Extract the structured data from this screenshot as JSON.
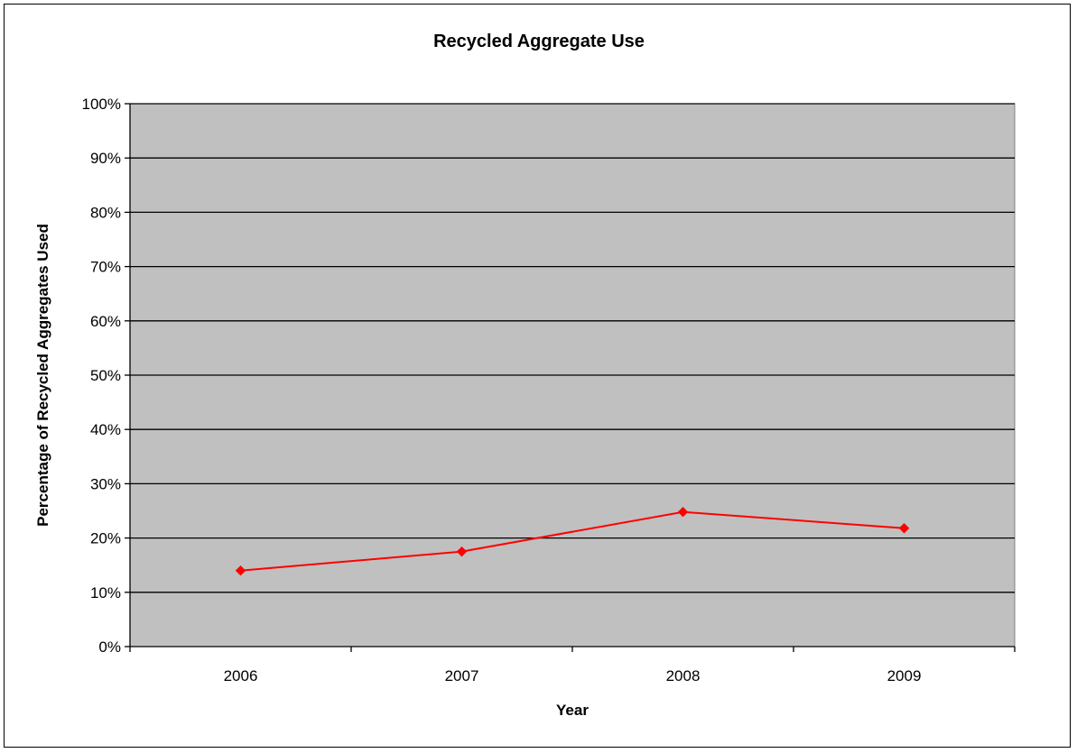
{
  "chart_data": {
    "type": "line",
    "title": "Recycled Aggregate Use",
    "xlabel": "Year",
    "ylabel": "Percentage of Recycled Aggregates Used",
    "categories": [
      "2006",
      "2007",
      "2008",
      "2009"
    ],
    "series": [
      {
        "values": [
          14,
          17.5,
          24.8,
          21.8
        ],
        "color": "#ff0000",
        "marker": "diamond"
      }
    ],
    "ylim": [
      0,
      100
    ],
    "yticks": [
      0,
      10,
      20,
      30,
      40,
      50,
      60,
      70,
      80,
      90,
      100
    ],
    "ytick_labels": [
      "0%",
      "10%",
      "20%",
      "30%",
      "40%",
      "50%",
      "60%",
      "70%",
      "80%",
      "90%",
      "100%"
    ],
    "grid": true,
    "plot_background": "#c0c0c0",
    "legend": "none"
  }
}
